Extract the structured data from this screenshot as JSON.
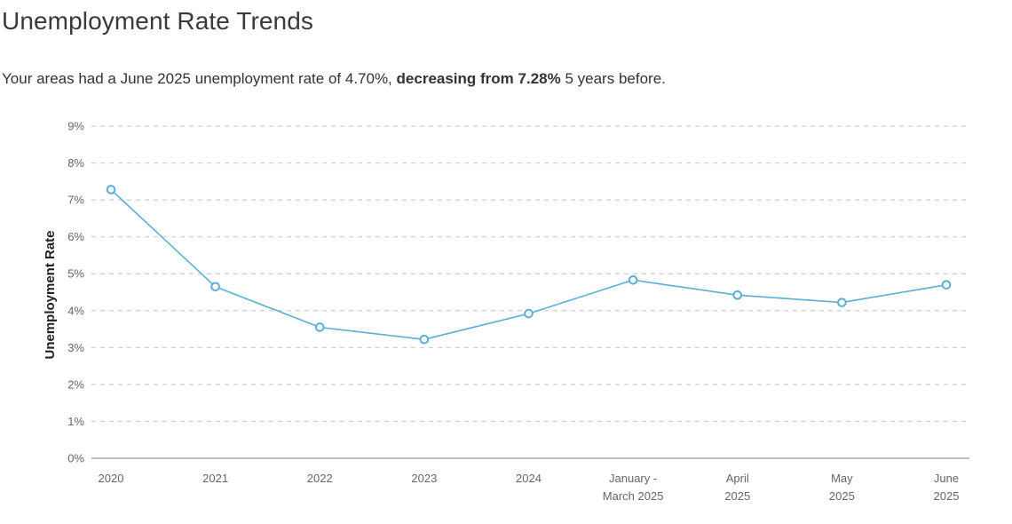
{
  "header": {
    "title": "Unemployment Rate Trends",
    "subtitle_pre": "Your areas had a June 2025 unemployment rate of 4.70%,",
    "subtitle_bold": "decreasing from 7.28%",
    "subtitle_post": "5 years before."
  },
  "colors": {
    "line": "#5aafd6",
    "marker_fill": "#ffffff",
    "grid": "#cccccc",
    "axis": "#999999"
  },
  "chart_data": {
    "type": "line",
    "title": "",
    "xlabel": "",
    "ylabel": "Unemployment Rate",
    "categories": [
      [
        "2020"
      ],
      [
        "2021"
      ],
      [
        "2022"
      ],
      [
        "2023"
      ],
      [
        "2024"
      ],
      [
        "January -",
        "March 2025"
      ],
      [
        "April",
        "2025"
      ],
      [
        "May",
        "2025"
      ],
      [
        "June",
        "2025"
      ]
    ],
    "series": [
      {
        "values": [
          7.28,
          4.65,
          3.55,
          3.22,
          3.92,
          4.83,
          4.42,
          4.22,
          4.7
        ]
      }
    ],
    "yticks": [
      "0%",
      "1%",
      "2%",
      "3%",
      "4%",
      "5%",
      "6%",
      "7%",
      "8%",
      "9%"
    ],
    "ylim": [
      0,
      9
    ],
    "grid": true,
    "grid_style": "dashed",
    "legend": "none"
  }
}
